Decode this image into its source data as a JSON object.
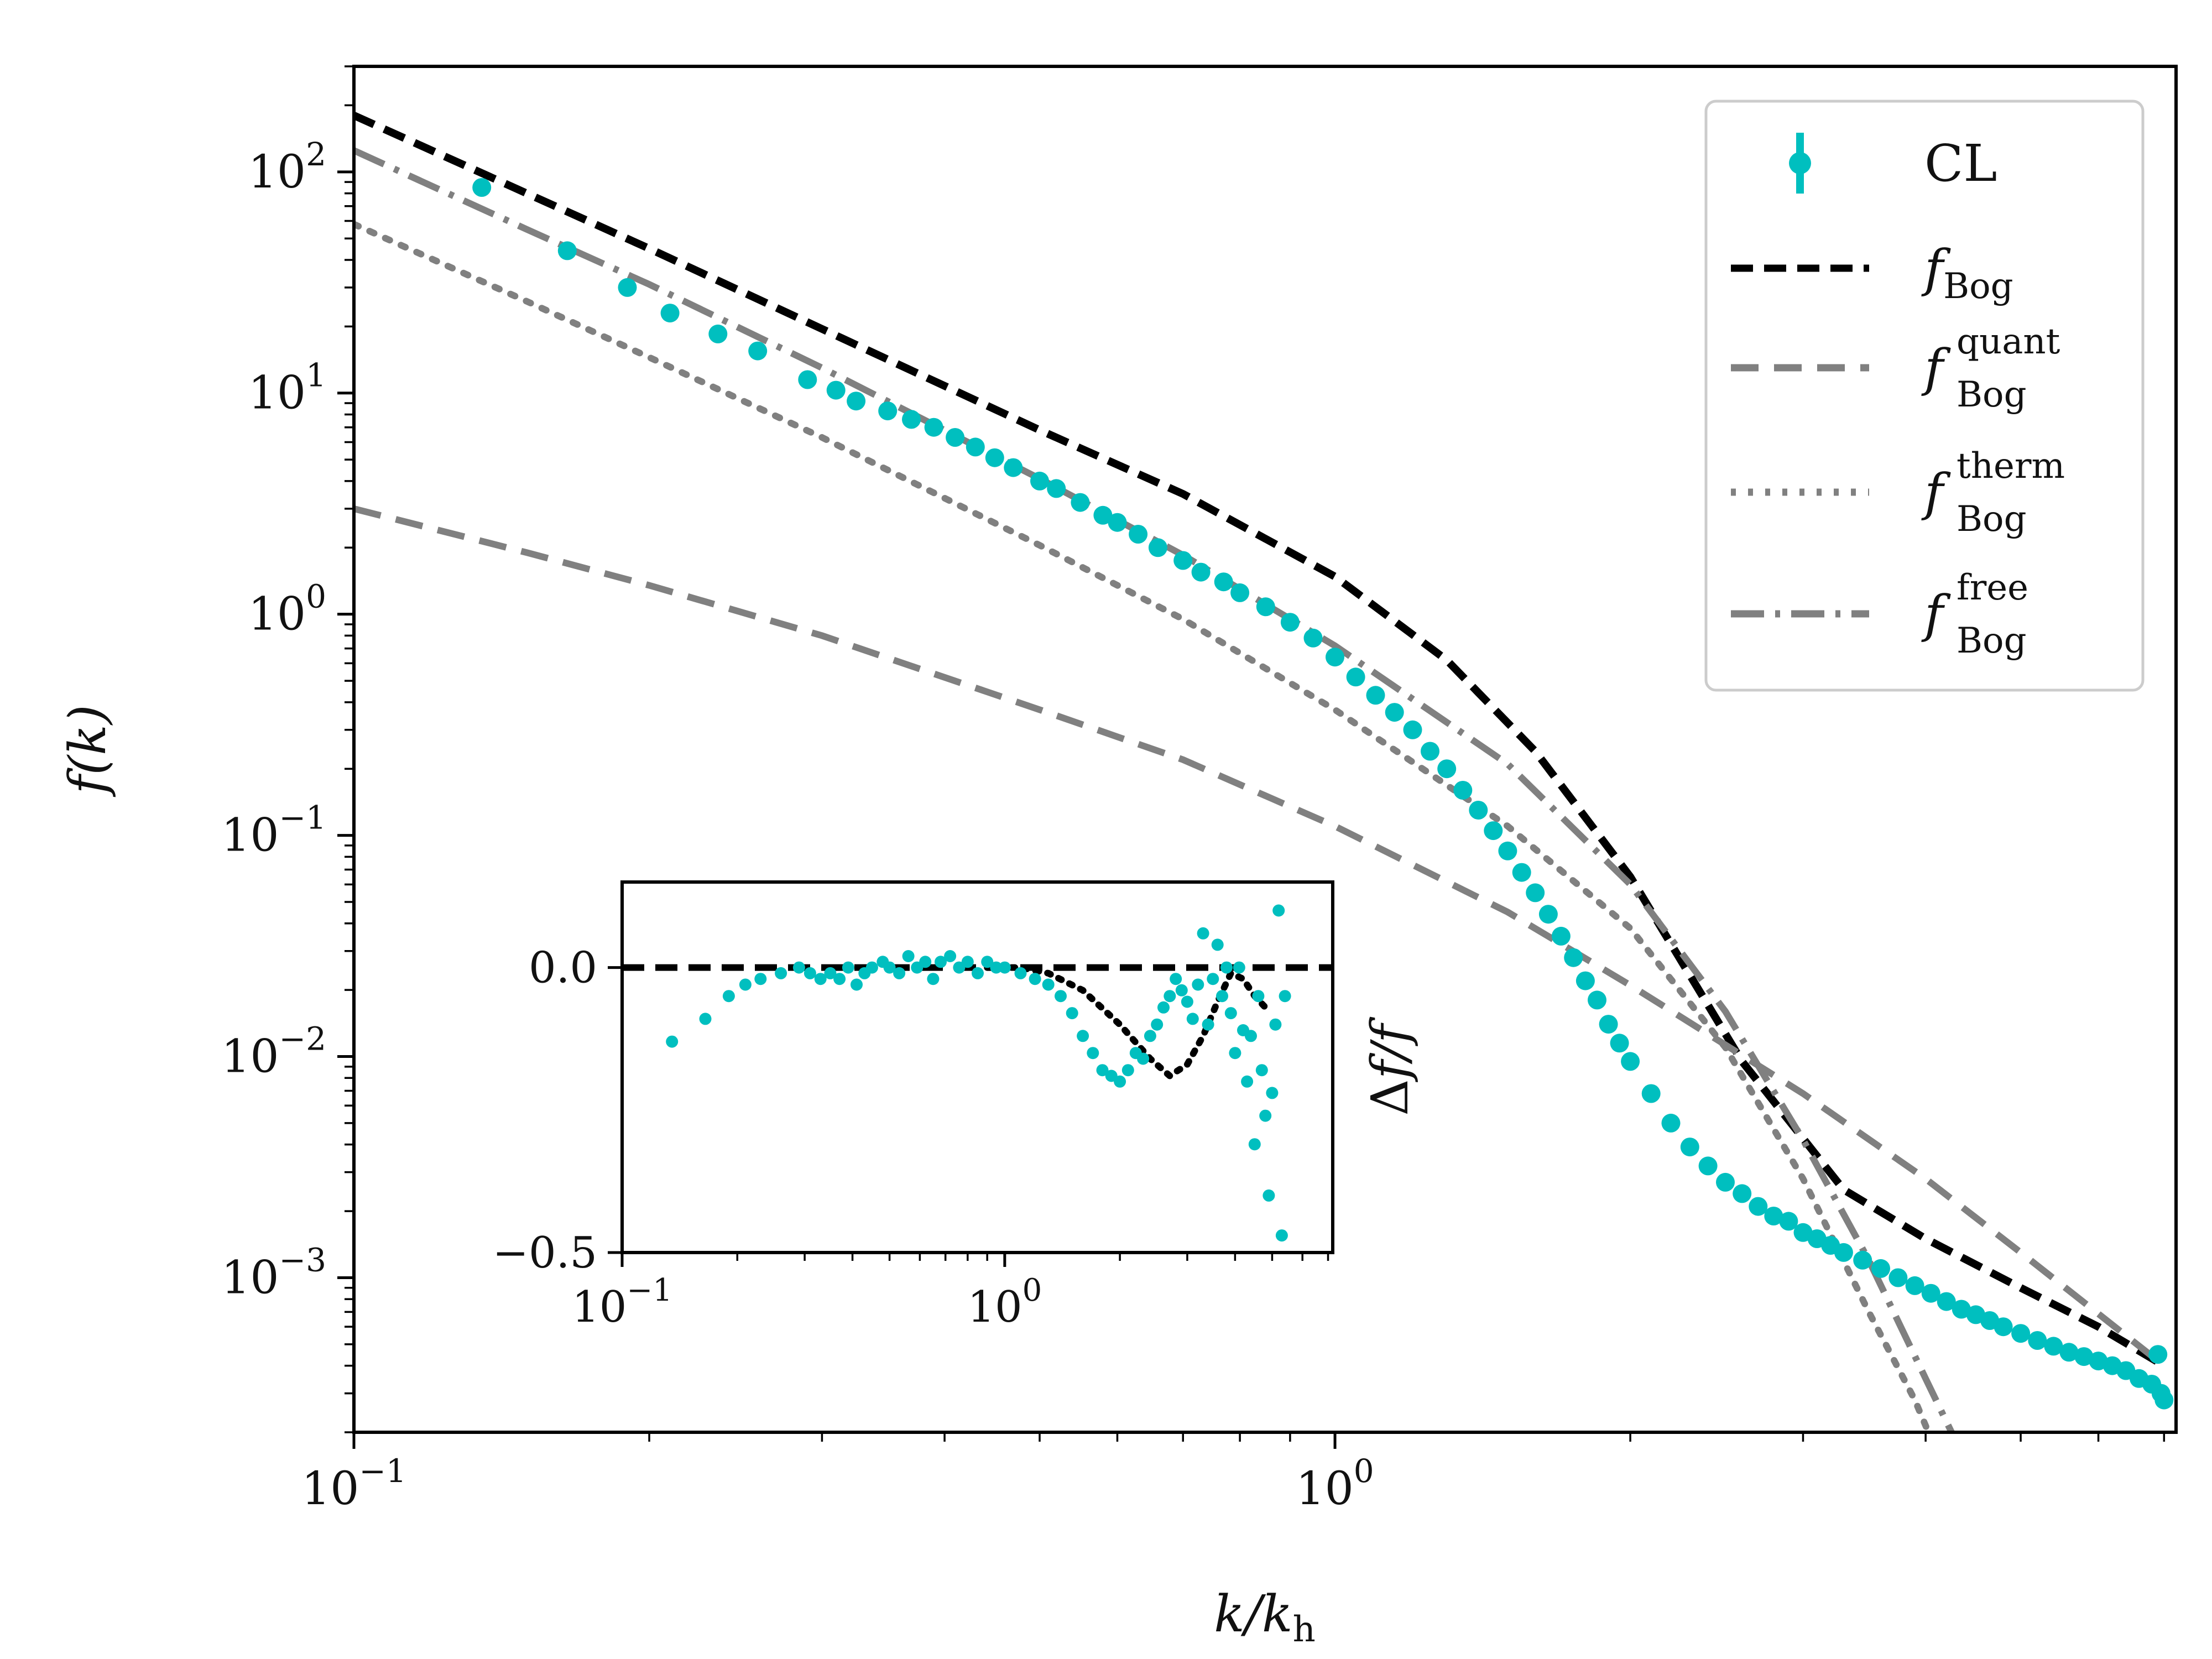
{
  "chart_data": [
    {
      "type": "line",
      "role": "main",
      "xscale": "log",
      "yscale": "log",
      "xlabel": "k/k_h",
      "ylabel": "f(k)",
      "xlim": [
        0.1,
        7.2
      ],
      "ylim": [
        0.0002,
        300
      ],
      "xticks": [
        {
          "value": 0.1,
          "base": "10",
          "exp": "−1"
        },
        {
          "value": 1,
          "base": "10",
          "exp": "0"
        }
      ],
      "yticks": [
        {
          "value": 0.001,
          "base": "10",
          "exp": "−3"
        },
        {
          "value": 0.01,
          "base": "10",
          "exp": "−2"
        },
        {
          "value": 0.1,
          "base": "10",
          "exp": "−1"
        },
        {
          "value": 1,
          "base": "10",
          "exp": "0"
        },
        {
          "value": 10,
          "base": "10",
          "exp": "1"
        },
        {
          "value": 100,
          "base": "10",
          "exp": "2"
        }
      ],
      "legend": {
        "placement": "top-right",
        "entries": [
          {
            "key": "CL",
            "label": "CL",
            "sub": "",
            "sup": ""
          },
          {
            "key": "bog",
            "label": "f",
            "sub": "Bog",
            "sup": ""
          },
          {
            "key": "quant",
            "label": "f",
            "sub": "Bog",
            "sup": "quant"
          },
          {
            "key": "therm",
            "label": "f",
            "sub": "Bog",
            "sup": "therm"
          },
          {
            "key": "free",
            "label": "f",
            "sub": "Bog",
            "sup": "free"
          }
        ]
      },
      "series": [
        {
          "key": "bog",
          "name": "f_Bog",
          "color": "#000000",
          "style": "dashed",
          "x": [
            0.1,
            0.15,
            0.2,
            0.3,
            0.5,
            0.7,
            1.0,
            1.3,
            1.6,
            2.0,
            2.6,
            3.3,
            4.0,
            5.0,
            6.0,
            7.0
          ],
          "y": [
            180,
            80,
            45,
            19.5,
            6.8,
            3.5,
            1.48,
            0.62,
            0.24,
            0.065,
            0.0095,
            0.0025,
            0.0015,
            0.0009,
            0.0006,
            0.0004
          ]
        },
        {
          "key": "quant",
          "name": "f_Bog^quant",
          "color": "#808080",
          "style": "dashed-long",
          "x": [
            0.1,
            0.15,
            0.2,
            0.3,
            0.5,
            0.7,
            1.0,
            1.5,
            2.0,
            3.0,
            4.0,
            5.0,
            7.0
          ],
          "y": [
            3.0,
            1.9,
            1.35,
            0.8,
            0.37,
            0.22,
            0.11,
            0.045,
            0.021,
            0.0068,
            0.0028,
            0.0013,
            0.0004
          ]
        },
        {
          "key": "therm",
          "name": "f_Bog^therm",
          "color": "#808080",
          "style": "dotted",
          "x": [
            0.1,
            0.15,
            0.2,
            0.3,
            0.5,
            0.7,
            1.0,
            1.5,
            2.0,
            2.5,
            3.0,
            3.5,
            3.9,
            4.3
          ],
          "y": [
            58,
            26,
            14.5,
            6.3,
            2.05,
            0.95,
            0.37,
            0.11,
            0.038,
            0.011,
            0.0028,
            0.0007,
            0.00028,
            0.0001
          ]
        },
        {
          "key": "free",
          "name": "f_Bog^free",
          "color": "#808080",
          "style": "dashdot",
          "x": [
            0.1,
            0.15,
            0.2,
            0.3,
            0.5,
            0.7,
            1.0,
            1.5,
            2.0,
            2.5,
            3.0,
            3.5,
            4.0,
            4.3
          ],
          "y": [
            125,
            55,
            31,
            13,
            4.1,
            1.85,
            0.72,
            0.21,
            0.06,
            0.016,
            0.0042,
            0.0012,
            0.00035,
            0.00018
          ]
        }
      ],
      "points": {
        "key": "CL",
        "name": "CL",
        "color": "#00bfbf",
        "x": [
          0.135,
          0.165,
          0.19,
          0.21,
          0.235,
          0.258,
          0.29,
          0.31,
          0.325,
          0.35,
          0.37,
          0.39,
          0.41,
          0.43,
          0.45,
          0.47,
          0.5,
          0.52,
          0.55,
          0.58,
          0.6,
          0.63,
          0.66,
          0.7,
          0.73,
          0.77,
          0.8,
          0.85,
          0.9,
          0.95,
          1.0,
          1.05,
          1.1,
          1.15,
          1.2,
          1.25,
          1.3,
          1.35,
          1.4,
          1.45,
          1.5,
          1.55,
          1.6,
          1.65,
          1.7,
          1.75,
          1.8,
          1.85,
          1.9,
          1.95,
          2.0,
          2.1,
          2.2,
          2.3,
          2.4,
          2.5,
          2.6,
          2.7,
          2.8,
          2.9,
          3.0,
          3.1,
          3.2,
          3.3,
          3.45,
          3.6,
          3.75,
          3.9,
          4.05,
          4.2,
          4.35,
          4.5,
          4.65,
          4.8,
          5.0,
          5.2,
          5.4,
          5.6,
          5.8,
          6.0,
          6.2,
          6.4,
          6.6,
          6.8,
          6.9,
          6.95,
          7.0
        ],
        "y": [
          85,
          44,
          30,
          23,
          18.5,
          15.5,
          11.5,
          10.3,
          9.2,
          8.3,
          7.6,
          7.0,
          6.3,
          5.7,
          5.1,
          4.6,
          4.0,
          3.7,
          3.2,
          2.8,
          2.6,
          2.3,
          2.0,
          1.75,
          1.55,
          1.4,
          1.25,
          1.08,
          0.92,
          0.78,
          0.64,
          0.52,
          0.43,
          0.36,
          0.3,
          0.24,
          0.2,
          0.16,
          0.13,
          0.105,
          0.085,
          0.068,
          0.055,
          0.044,
          0.035,
          0.028,
          0.022,
          0.018,
          0.014,
          0.0115,
          0.0095,
          0.0068,
          0.005,
          0.0039,
          0.0032,
          0.0027,
          0.0024,
          0.0021,
          0.0019,
          0.0018,
          0.0016,
          0.0015,
          0.0014,
          0.0013,
          0.0012,
          0.0011,
          0.001,
          0.00092,
          0.00085,
          0.00078,
          0.00072,
          0.00068,
          0.00064,
          0.0006,
          0.00056,
          0.00052,
          0.00049,
          0.00046,
          0.00044,
          0.00042,
          0.0004,
          0.00038,
          0.00035,
          0.00033,
          0.00045,
          0.0003,
          0.00028
        ]
      }
    },
    {
      "type": "scatter",
      "role": "inset",
      "xscale": "log",
      "ylabel": "Δf/f",
      "xlim": [
        0.1,
        7.2
      ],
      "ylim": [
        -0.5,
        0.15
      ],
      "xticks": [
        {
          "value": 0.1,
          "base": "10",
          "exp": "−1"
        },
        {
          "value": 1,
          "base": "10",
          "exp": "0"
        }
      ],
      "yticks": [
        {
          "value": 0.0,
          "label": "0.0"
        },
        {
          "value": -0.5,
          "label": "−0.5"
        }
      ],
      "series": [
        {
          "key": "zero",
          "name": "zero line",
          "color": "#000000",
          "style": "dashed",
          "x": [
            0.1,
            7.2
          ],
          "y": [
            0,
            0
          ]
        },
        {
          "key": "residual",
          "name": "f_Bog residual",
          "color": "#000000",
          "style": "dotted",
          "x": [
            0.9,
            1.1,
            1.3,
            1.6,
            2.0,
            2.4,
            2.7,
            3.0,
            3.3,
            3.6,
            3.9,
            4.2,
            4.5,
            4.8
          ],
          "y": [
            0.0,
            0.0,
            -0.01,
            -0.04,
            -0.1,
            -0.16,
            -0.19,
            -0.17,
            -0.12,
            -0.06,
            -0.01,
            -0.02,
            -0.05,
            -0.07
          ]
        }
      ],
      "points": {
        "key": "CL",
        "name": "CL",
        "color": "#00bfbf",
        "x": [
          0.135,
          0.165,
          0.19,
          0.21,
          0.23,
          0.26,
          0.29,
          0.31,
          0.33,
          0.35,
          0.37,
          0.39,
          0.41,
          0.43,
          0.45,
          0.48,
          0.5,
          0.53,
          0.56,
          0.59,
          0.62,
          0.65,
          0.68,
          0.72,
          0.76,
          0.8,
          0.85,
          0.9,
          0.95,
          1.0,
          1.1,
          1.2,
          1.3,
          1.4,
          1.5,
          1.6,
          1.7,
          1.8,
          1.9,
          2.0,
          2.1,
          2.2,
          2.3,
          2.4,
          2.5,
          2.6,
          2.7,
          2.8,
          2.9,
          3.0,
          3.1,
          3.2,
          3.3,
          3.4,
          3.5,
          3.6,
          3.7,
          3.8,
          3.9,
          4.0,
          4.1,
          4.2,
          4.3,
          4.4,
          4.5,
          4.6,
          4.7,
          4.8,
          4.9,
          5.0,
          5.1,
          5.2,
          5.3,
          5.4
        ],
        "y": [
          -0.13,
          -0.09,
          -0.05,
          -0.03,
          -0.02,
          -0.01,
          0.0,
          -0.01,
          -0.02,
          -0.01,
          -0.02,
          0.0,
          -0.03,
          -0.01,
          0.0,
          0.01,
          0.0,
          -0.01,
          0.02,
          0.0,
          0.01,
          -0.02,
          0.01,
          0.02,
          0.0,
          0.01,
          -0.01,
          0.01,
          0.0,
          0.0,
          -0.01,
          -0.02,
          -0.03,
          -0.05,
          -0.08,
          -0.12,
          -0.15,
          -0.18,
          -0.19,
          -0.2,
          -0.18,
          -0.15,
          -0.16,
          -0.12,
          -0.1,
          -0.07,
          -0.05,
          -0.02,
          -0.04,
          -0.06,
          -0.09,
          -0.03,
          0.06,
          -0.1,
          -0.02,
          0.04,
          -0.05,
          0.0,
          -0.08,
          -0.15,
          0.0,
          -0.11,
          -0.2,
          -0.12,
          -0.31,
          -0.05,
          -0.18,
          -0.26,
          -0.4,
          -0.22,
          -0.1,
          0.1,
          -0.47,
          -0.05
        ]
      }
    }
  ]
}
